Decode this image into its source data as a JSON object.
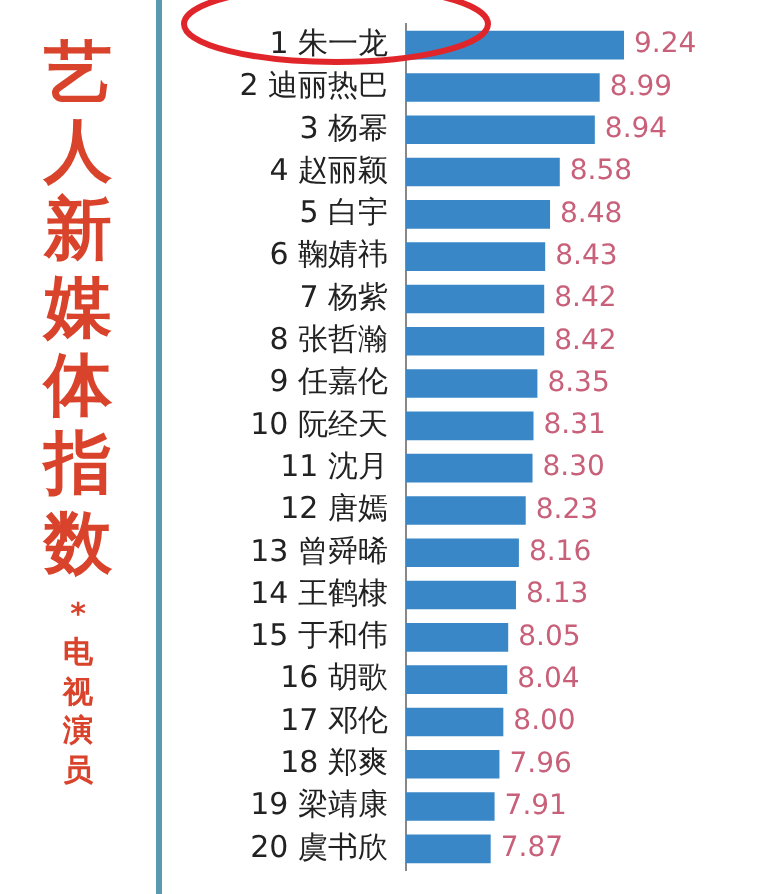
{
  "chart_data": {
    "type": "bar",
    "orientation": "horizontal",
    "title": "艺人新媒体指数",
    "subtitle": "*电视演员",
    "categories": [
      "1 朱一龙",
      "2 迪丽热巴",
      "3 杨幂",
      "4 赵丽颖",
      "5 白宇",
      "6 鞠婧祎",
      "7 杨紫",
      "8 张哲瀚",
      "9 任嘉伦",
      "10 阮经天",
      "11 沈月",
      "12 唐嫣",
      "13 曾舜晞",
      "14 王鹤棣",
      "15 于和伟",
      "16 胡歌",
      "17 邓伦",
      "18 郑爽",
      "19 梁靖康",
      "20 虞书欣"
    ],
    "values": [
      9.24,
      8.99,
      8.94,
      8.58,
      8.48,
      8.43,
      8.42,
      8.42,
      8.35,
      8.31,
      8.3,
      8.23,
      8.16,
      8.13,
      8.05,
      8.04,
      8.0,
      7.96,
      7.91,
      7.87
    ],
    "value_labels": [
      "9.24",
      "8.99",
      "8.94",
      "8.58",
      "8.48",
      "8.43",
      "8.42",
      "8.42",
      "8.35",
      "8.31",
      "8.30",
      "8.23",
      "8.16",
      "8.13",
      "8.05",
      "8.04",
      "8.00",
      "7.96",
      "7.91",
      "7.87"
    ],
    "color": "#3a87c8",
    "grid": false,
    "legend": false,
    "tick_labels": "y"
  }
}
